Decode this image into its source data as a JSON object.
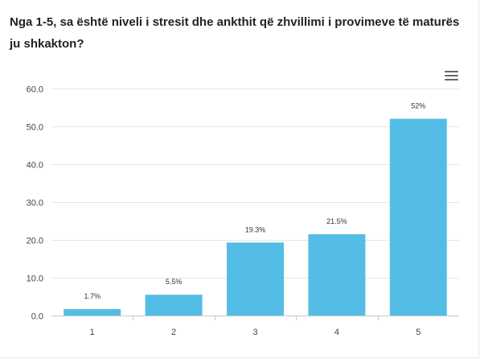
{
  "question": "Nga 1-5, sa është niveli i stresit dhe ankthit që zhvillimi i provimeve të maturës ju shkakton?",
  "menu": {
    "icon": "hamburger-menu-icon"
  },
  "colors": {
    "bar": "#54bde6",
    "grid": "#e6e6e6",
    "axis": "#c8c8c8"
  },
  "chart_data": {
    "type": "bar",
    "title": "",
    "xlabel": "",
    "ylabel": "",
    "categories": [
      "1",
      "2",
      "3",
      "4",
      "5"
    ],
    "values": [
      1.7,
      5.5,
      19.3,
      21.5,
      52
    ],
    "data_labels": [
      "1.7%",
      "5.5%",
      "19.3%",
      "21.5%",
      "52%"
    ],
    "ylim": [
      0,
      60
    ],
    "yticks": [
      0,
      10,
      20,
      30,
      40,
      50,
      60
    ],
    "ytick_labels": [
      "0.0",
      "10.0",
      "20.0",
      "30.0",
      "40.0",
      "50.0",
      "60.0"
    ],
    "grid": true,
    "legend": false
  }
}
